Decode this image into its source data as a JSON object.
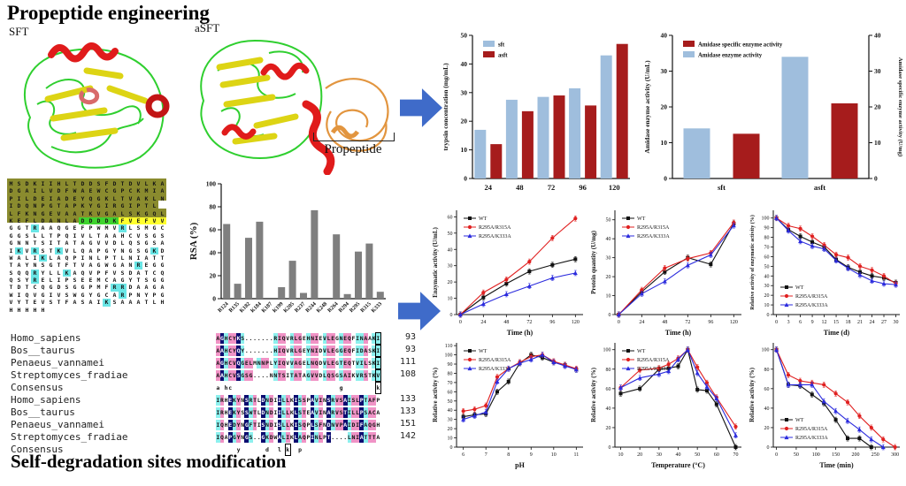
{
  "titles": {
    "top": "Propeptide engineering",
    "bottom": "Self-degradation sites modification"
  },
  "structures": {
    "left_label": "SFT",
    "right_label": "aSFT",
    "propeptide_label": "Propeptide"
  },
  "colors": {
    "bar_blue": "#9fbedd",
    "bar_red": "#a61c1c",
    "bar_gray": "#7f7f7f",
    "arrow_blue": "#3f6bc9",
    "series_black": "#111111",
    "series_red": "#e02020",
    "series_blue": "#2b2bdd",
    "seq_olive": "#8a8b2e",
    "seq_green": "#3fd42f",
    "seq_yellow": "#ffff2e",
    "seq_cyan": "#6ae6e6",
    "align_pink": "#f093c6",
    "align_cyan": "#8df0ee",
    "align_navy": "#0c0c70"
  },
  "sequence_block": {
    "rows": [
      "MSDKIIHLTDDSFDTDVLKA",
      "DGAILVDFWAEWCGPCKMIA",
      "PILDEIADEYQGKLTVAKLN",
      "IDQNPGTAPKYGIRGIPTL",
      "LFKNGEVAATKVGALSKGQL",
      "KEFLDANLADDDDKFVEFVV",
      "GGTRAAQGEFPWMVRLSMGC",
      "GGSLLTPQIVLTAAHCVSGS",
      "GNNTSITATAGVVDLQSGSA",
      "IKVRSTKVLQAPGYNGSGKD",
      "WALIKLAQPINLPTLNIATT",
      "TAYNSGTFTVAGWGANREGG",
      "SQQRYLLKAQVPFVSDATCQ",
      "QSYRELIPSEEMCAGYTSGG",
      "TDTCQGDSGGPMFRRDAAGA",
      "WIQVGIVSWGYGCARPNYPG",
      "VYTEVSTFASAIKSAAATLH",
      "HHHHH"
    ],
    "special_row": 5,
    "green_range": [
      9,
      14
    ],
    "yellow_range": [
      14,
      20
    ]
  },
  "alignments": [
    {
      "box_col": 39,
      "rows": [
        {
          "name": "Homo_sapiens",
          "seq": "AGHCYKS.......RIQVRLGEHNIEVLEGNEQFINAAKI",
          "num": "93"
        },
        {
          "name": "Bos__taurus",
          "seq": "AAHCYQY.......HIQVRLGEYNIDVLEGGEQFIDASKI",
          "num": "93"
        },
        {
          "name": "Penaeus_vannamei",
          "seq": "AGHCVQGELMNNPLYIQVVAGELNQDVLEGTEQTVILSKI",
          "num": "111"
        },
        {
          "name": "Streptomyces_fradiae",
          "seq": "AAHCVSGSG....NNTSITATAGVVDLQSGSAIKVRSTKV",
          "num": "108"
        },
        {
          "name": "Consensus",
          "seq": "a hc                          g        k",
          "num": ""
        }
      ]
    },
    {
      "box_consensus_col": 17,
      "rows": [
        {
          "name": "Homo_sapiens",
          "seq": "IRHEKYNSRTLDNDIILLKISSPAVINSRVSAISLPTAFP",
          "num": "133"
        },
        {
          "name": "Bos__taurus",
          "seq": "IRHEKYSSWTLDNDIILLKLSTEAVINARVSTILLPSACA",
          "num": "133"
        },
        {
          "name": "Penaeus_vannamei",
          "seq": "IQHEDYNGFTISNDISLLKISQPLSFNDNVPAIDIFAQGH",
          "num": "151"
        },
        {
          "name": "Streptomyces_fradiae",
          "seq": "IQAPGYNGS..GKDWALIKLAQPINLPT....LNIATTTA",
          "num": "142"
        },
        {
          "name": "Consensus",
          "seq": "     y      d  l k  p",
          "num": ""
        }
      ]
    }
  ],
  "chart_data": [
    {
      "id": "trypsin-bar",
      "type": "bar",
      "categories": [
        "24",
        "48",
        "72",
        "96",
        "120"
      ],
      "series": [
        {
          "name": "sft",
          "color": "#9fbedd",
          "values": [
            17,
            27.5,
            28.5,
            31.5,
            43
          ]
        },
        {
          "name": "asft",
          "color": "#a61c1c",
          "values": [
            12,
            23.5,
            29,
            25.5,
            47
          ]
        }
      ],
      "ylabel": "trypsin concentration (mg/mL)",
      "ylim": [
        0,
        50
      ],
      "ytick": 10,
      "legend": "tl",
      "bw": 13,
      "gap": 5
    },
    {
      "id": "amidase-bar",
      "type": "bar",
      "dual": true,
      "categories": [
        "sft",
        "asft"
      ],
      "series": [
        {
          "name": "Amidase enzyme activity",
          "color": "#9fbedd",
          "values": [
            14,
            34
          ]
        },
        {
          "name": "Amidase specific enzyme activity",
          "color": "#a61c1c",
          "values": [
            12.5,
            21
          ]
        }
      ],
      "legend_series": [
        1,
        0
      ],
      "ylabel": "Amidase enzyme activity (U/mL)",
      "ylabel_right": "Amidase specific enzyme activity (U/mg)",
      "ylim": [
        0,
        40
      ],
      "ytick": 10,
      "legend": "tl",
      "bw": 30,
      "gap": 26
    },
    {
      "id": "rsa-bar",
      "type": "bar",
      "rot": true,
      "categories": [
        "R124",
        "R135",
        "K182",
        "K184",
        "K187",
        "K199",
        "K205",
        "R237",
        "R244",
        "K248",
        "R264",
        "R294",
        "R295",
        "R315",
        "K333"
      ],
      "series": [
        {
          "name": "RSA",
          "color": "#7f7f7f",
          "values": [
            65,
            13,
            53,
            67,
            0,
            10,
            33,
            5,
            77,
            0,
            56,
            4,
            41,
            48,
            6
          ]
        }
      ],
      "ylabel": "RSA (%)",
      "ylfs": 11,
      "ylim": [
        0,
        100
      ],
      "ytick": 20,
      "bw": 8,
      "gap": 0
    },
    {
      "id": "line-enzymatic",
      "type": "line",
      "x": [
        0,
        24,
        48,
        72,
        96,
        120
      ],
      "xticks": [
        0,
        24,
        48,
        72,
        96,
        120
      ],
      "xlim": [
        -4,
        128
      ],
      "xlabel": "Time (h)",
      "ylabel": "Enzymatic activity (U/mL)",
      "ylim": [
        0,
        64
      ],
      "ytick": 10,
      "legend": "tl",
      "err": true,
      "series": [
        {
          "name": "WT",
          "color": "#111111",
          "marker": "square",
          "values": [
            0,
            10.5,
            19,
            26.5,
            30.5,
            34
          ]
        },
        {
          "name": "R295A/R315A",
          "color": "#e02020",
          "marker": "circle",
          "values": [
            0,
            13.5,
            21.5,
            32.5,
            47,
            59
          ]
        },
        {
          "name": "R295A/K333A",
          "color": "#2b2bdd",
          "marker": "triangle",
          "values": [
            0,
            6.5,
            12.5,
            17.5,
            22.5,
            25.5
          ]
        }
      ]
    },
    {
      "id": "line-protein",
      "type": "line",
      "x": [
        0,
        24,
        48,
        72,
        96,
        120
      ],
      "xticks": [
        0,
        24,
        48,
        72,
        96,
        120
      ],
      "xlim": [
        -4,
        128
      ],
      "xlabel": "Time (h)",
      "ylabel": "Protein quantity (U/mg)",
      "ylim": [
        0,
        55
      ],
      "ytick": 10,
      "legend": "tl",
      "err": true,
      "series": [
        {
          "name": "WT",
          "color": "#111111",
          "marker": "square",
          "values": [
            0,
            12,
            22.5,
            30,
            26.5,
            48
          ]
        },
        {
          "name": "R295A/R315A",
          "color": "#e02020",
          "marker": "circle",
          "values": [
            0,
            13,
            24.5,
            29.5,
            32.5,
            48.5
          ]
        },
        {
          "name": "R295A/K333A",
          "color": "#2b2bdd",
          "marker": "triangle",
          "values": [
            0,
            11,
            17.5,
            26,
            31.5,
            47
          ]
        }
      ]
    },
    {
      "id": "line-storage",
      "type": "line",
      "x": [
        0,
        3,
        6,
        9,
        12,
        15,
        18,
        21,
        24,
        27,
        30
      ],
      "xticks": [
        0,
        3,
        6,
        9,
        12,
        15,
        18,
        21,
        24,
        27,
        30
      ],
      "xlim": [
        -0.8,
        31
      ],
      "xlabel": "Time (d)",
      "ylabel": "Relative activity of enzymatic activity (%)",
      "ylfs": 6,
      "ylim": [
        0,
        108
      ],
      "ytick": 10,
      "legend": "bl",
      "err": true,
      "series": [
        {
          "name": "WT",
          "color": "#111111",
          "marker": "square",
          "values": [
            100,
            88,
            81,
            75,
            70,
            57,
            49,
            44,
            40,
            38,
            33
          ]
        },
        {
          "name": "R295A/R315A",
          "color": "#e02020",
          "marker": "circle",
          "values": [
            100,
            92,
            89,
            81,
            72,
            62,
            59,
            50,
            46,
            40,
            32
          ]
        },
        {
          "name": "R295A/K333A",
          "color": "#2b2bdd",
          "marker": "triangle",
          "values": [
            100,
            87,
            76,
            71,
            68,
            56,
            48,
            41,
            35,
            32,
            31
          ]
        }
      ]
    },
    {
      "id": "line-ph",
      "type": "line",
      "x": [
        6,
        6.5,
        7,
        7.5,
        8,
        8.5,
        9,
        9.5,
        10,
        10.5,
        11
      ],
      "xticks": [
        6,
        7,
        8,
        9,
        10,
        11
      ],
      "xlim": [
        5.7,
        11.3
      ],
      "xlabel": "pH",
      "ylabel": "Relative activity (%)",
      "ylim": [
        0,
        113
      ],
      "ytick": 10,
      "legend": "tl",
      "err": true,
      "series": [
        {
          "name": "WT",
          "color": "#111111",
          "marker": "square",
          "values": [
            33,
            35,
            36,
            60,
            71,
            91,
            100,
            97,
            92,
            89,
            84
          ]
        },
        {
          "name": "R295A/R315A",
          "color": "#e02020",
          "marker": "circle",
          "values": [
            39,
            41,
            45,
            76,
            85,
            92,
            98,
            100,
            93,
            89,
            85
          ]
        },
        {
          "name": "R295A/K333A",
          "color": "#2b2bdd",
          "marker": "triangle",
          "values": [
            30,
            34,
            38,
            71,
            85,
            91,
            95,
            100,
            92,
            88,
            84
          ]
        }
      ]
    },
    {
      "id": "line-temp",
      "type": "line",
      "x": [
        10,
        20,
        30,
        35,
        40,
        45,
        50,
        55,
        60,
        70
      ],
      "xticks": [
        10,
        20,
        30,
        40,
        50,
        60,
        70
      ],
      "xlim": [
        7,
        73
      ],
      "xlabel": "Temperature (°C)",
      "ylabel": "Relative activity (%)",
      "ylim": [
        0,
        107
      ],
      "ytick": 20,
      "legend": "tl",
      "err": true,
      "series": [
        {
          "name": "WT",
          "color": "#111111",
          "marker": "square",
          "values": [
            55,
            60,
            80,
            81,
            83,
            100,
            59,
            58,
            44,
            0
          ]
        },
        {
          "name": "R295A/R315A",
          "color": "#e02020",
          "marker": "circle",
          "values": [
            61,
            79,
            81,
            85,
            91,
            100,
            82,
            66,
            51,
            21
          ]
        },
        {
          "name": "R295A/K333A",
          "color": "#2b2bdd",
          "marker": "triangle",
          "values": [
            61,
            71,
            75,
            78,
            90,
            100,
            76,
            62,
            50,
            12
          ]
        }
      ]
    },
    {
      "id": "line-time",
      "type": "line",
      "x": [
        0,
        30,
        60,
        90,
        120,
        150,
        180,
        210,
        240,
        270,
        300
      ],
      "xticks": [
        0,
        50,
        100,
        150,
        200,
        250,
        300
      ],
      "xlim": [
        -8,
        312
      ],
      "xlabel": "Time (min)",
      "ylabel": "Relative activity (%)",
      "ylim": [
        0,
        107
      ],
      "ytick": 20,
      "legend": "bl",
      "err": true,
      "series": [
        {
          "name": "WT",
          "color": "#111111",
          "marker": "square",
          "values": [
            100,
            64,
            63,
            54,
            45,
            28,
            9,
            9,
            0
          ]
        },
        {
          "name": "R295A/R315A",
          "color": "#e02020",
          "marker": "circle",
          "values": [
            100,
            74,
            68,
            66,
            64,
            55,
            46,
            32,
            20,
            8,
            0
          ]
        },
        {
          "name": "R295A/K333A",
          "color": "#2b2bdd",
          "marker": "triangle",
          "values": [
            100,
            64,
            64,
            64,
            47,
            37,
            27,
            18,
            8,
            0
          ]
        }
      ]
    }
  ]
}
